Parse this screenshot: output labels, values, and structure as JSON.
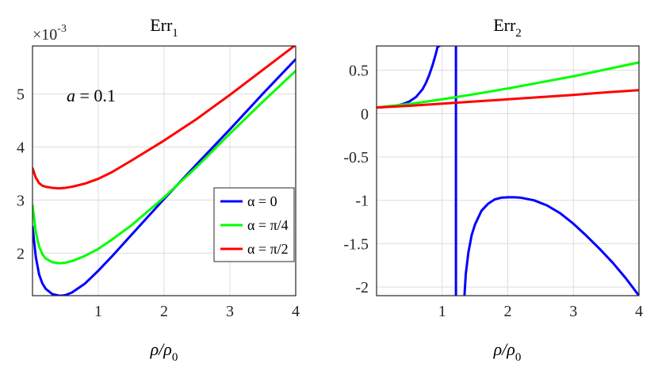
{
  "chart_data": [
    {
      "type": "line",
      "title": "Err",
      "title_subscript": "1",
      "xlabel": "ρ/ρ",
      "xlabel_subscript": "0",
      "ylabel": "",
      "exponent_label": "×10",
      "exponent_power": "-3",
      "annotation": "a = 0.1",
      "annotation_var": "a",
      "annotation_rest": " = 0.1",
      "xlim": [
        0,
        4
      ],
      "ylim": [
        1.2,
        5.9
      ],
      "xticks": [
        1,
        2,
        3,
        4
      ],
      "yticks": [
        2,
        3,
        4,
        5
      ],
      "grid": true,
      "legend_position": "lower-right",
      "series": [
        {
          "name": "α = 0",
          "color": "#0000ff",
          "x": [
            0.0,
            0.05,
            0.1,
            0.15,
            0.2,
            0.3,
            0.4,
            0.45,
            0.5,
            0.6,
            0.8,
            1.0,
            1.2,
            1.5,
            2.0,
            2.5,
            3.0,
            3.5,
            4.0
          ],
          "y": [
            2.5,
            1.93,
            1.6,
            1.43,
            1.33,
            1.23,
            1.2,
            1.2,
            1.21,
            1.26,
            1.43,
            1.67,
            1.93,
            2.34,
            3.02,
            3.68,
            4.33,
            5.0,
            5.65
          ]
        },
        {
          "name": "α = π/4",
          "color": "#00ff00",
          "x": [
            0.0,
            0.05,
            0.1,
            0.15,
            0.2,
            0.3,
            0.4,
            0.5,
            0.6,
            0.8,
            1.0,
            1.2,
            1.5,
            2.0,
            2.5,
            3.0,
            3.5,
            4.0
          ],
          "y": [
            2.9,
            2.4,
            2.13,
            1.98,
            1.9,
            1.83,
            1.81,
            1.82,
            1.85,
            1.95,
            2.08,
            2.25,
            2.52,
            3.05,
            3.63,
            4.25,
            4.85,
            5.43
          ]
        },
        {
          "name": "α = π/2",
          "color": "#ff0000",
          "x": [
            0.0,
            0.05,
            0.1,
            0.15,
            0.2,
            0.3,
            0.4,
            0.5,
            0.6,
            0.8,
            1.0,
            1.2,
            1.5,
            2.0,
            2.5,
            3.0,
            3.5,
            4.0
          ],
          "y": [
            3.6,
            3.42,
            3.32,
            3.27,
            3.25,
            3.23,
            3.22,
            3.23,
            3.25,
            3.31,
            3.4,
            3.52,
            3.74,
            4.12,
            4.53,
            4.98,
            5.45,
            5.92
          ]
        }
      ]
    },
    {
      "type": "line",
      "title": "Err",
      "title_subscript": "2",
      "xlabel": "ρ/ρ",
      "xlabel_subscript": "0",
      "ylabel": "",
      "xlim": [
        0,
        4
      ],
      "ylim": [
        -2.1,
        0.78
      ],
      "xticks": [
        1,
        2,
        3,
        4
      ],
      "yticks": [
        0.5,
        0,
        -0.5,
        -1,
        -1.5,
        -2
      ],
      "ytick_labels": [
        "0.5",
        "0",
        "-0.5",
        "-1",
        "-1.5",
        "-2"
      ],
      "grid": true,
      "series": [
        {
          "name": "α = 0",
          "color": "#0000ff",
          "segments": [
            {
              "x": [
                0.0,
                0.1,
                0.2,
                0.3,
                0.4,
                0.5,
                0.6,
                0.7,
                0.75,
                0.8,
                0.85,
                0.9,
                0.93,
                0.96
              ],
              "y": [
                0.07,
                0.075,
                0.08,
                0.09,
                0.11,
                0.14,
                0.19,
                0.28,
                0.35,
                0.44,
                0.55,
                0.68,
                0.77,
                0.78
              ]
            },
            {
              "x": [
                1.21,
                1.21
              ],
              "y": [
                0.78,
                -2.1
              ]
            },
            {
              "x": [
                1.34,
                1.36,
                1.4,
                1.45,
                1.5,
                1.6,
                1.7,
                1.8,
                1.9,
                2.0,
                2.1,
                2.2,
                2.4,
                2.6,
                2.8,
                3.0,
                3.2,
                3.4,
                3.6,
                3.8,
                4.0
              ],
              "y": [
                -2.1,
                -1.85,
                -1.6,
                -1.4,
                -1.28,
                -1.12,
                -1.04,
                -0.99,
                -0.97,
                -0.965,
                -0.965,
                -0.97,
                -1.0,
                -1.06,
                -1.15,
                -1.27,
                -1.41,
                -1.56,
                -1.72,
                -1.9,
                -2.1
              ]
            }
          ]
        },
        {
          "name": "α = π/4",
          "color": "#00ff00",
          "segments": [
            {
              "x": [
                0.0,
                0.5,
                1.0,
                1.5,
                2.0,
                2.5,
                3.0,
                3.5,
                4.0
              ],
              "y": [
                0.07,
                0.11,
                0.165,
                0.225,
                0.29,
                0.36,
                0.43,
                0.51,
                0.59
              ]
            }
          ]
        },
        {
          "name": "α = π/2",
          "color": "#ff0000",
          "segments": [
            {
              "x": [
                0.0,
                0.5,
                1.0,
                1.5,
                2.0,
                2.5,
                3.0,
                3.5,
                4.0
              ],
              "y": [
                0.07,
                0.09,
                0.115,
                0.14,
                0.165,
                0.19,
                0.215,
                0.245,
                0.27
              ]
            }
          ]
        }
      ]
    }
  ]
}
